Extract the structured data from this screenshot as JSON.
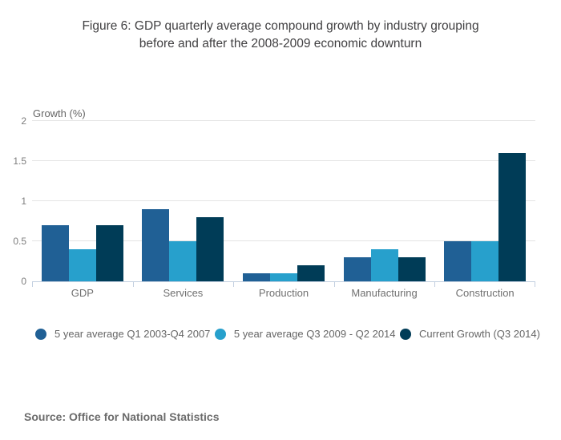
{
  "title": {
    "line1": "Figure 6: GDP quarterly average compound growth by industry grouping",
    "line2": "before and after the 2008-2009 economic downturn"
  },
  "source": "Source: Office for National Statistics",
  "colors": {
    "axis_line": "#C2CFE0",
    "gridline": "#E4E4E4",
    "title_text": "#414042",
    "axis_text": "#7D7D7D"
  },
  "chart_data": {
    "type": "bar",
    "title": "Figure 6: GDP quarterly average compound growth by industry grouping before and after the 2008-2009 economic downturn",
    "ylabel": "Growth (%)",
    "xlabel": "",
    "ylim": [
      0,
      2
    ],
    "yticks": [
      0,
      0.5,
      1,
      1.5,
      2
    ],
    "grid": true,
    "legend_position": "bottom",
    "categories": [
      "GDP",
      "Services",
      "Production",
      "Manufacturing",
      "Construction"
    ],
    "series": [
      {
        "name": "5 year average Q1 2003-Q4 2007",
        "color": "#206095",
        "values": [
          0.7,
          0.9,
          0.1,
          0.3,
          0.5
        ]
      },
      {
        "name": "5 year average Q3 2009 - Q2 2014",
        "color": "#27A0CC",
        "values": [
          0.4,
          0.5,
          0.1,
          0.4,
          0.5
        ]
      },
      {
        "name": "Current Growth (Q3 2014)",
        "color": "#003C57",
        "values": [
          0.7,
          0.8,
          0.2,
          0.3,
          1.6
        ]
      }
    ]
  }
}
